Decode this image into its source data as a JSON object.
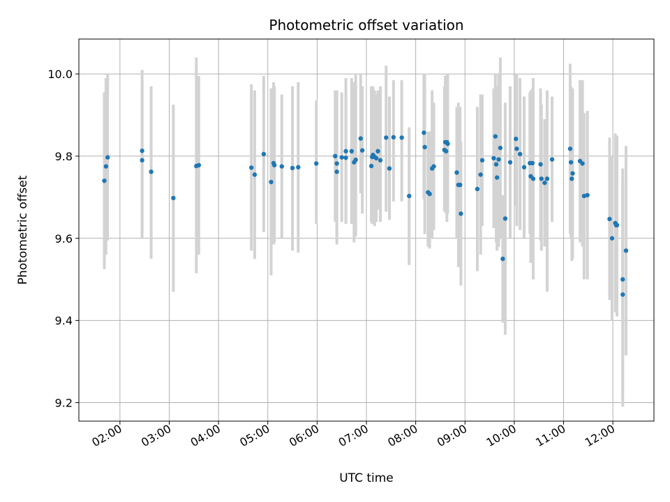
{
  "chart_data": {
    "type": "scatter",
    "title": "Photometric offset variation",
    "xlabel": "UTC time",
    "ylabel": "Photometric offset",
    "xlim": [
      "01:10",
      "12:50"
    ],
    "ylim": [
      9.155,
      10.085
    ],
    "x_ticks": [
      "02:00",
      "03:00",
      "04:00",
      "05:00",
      "06:00",
      "07:00",
      "08:00",
      "09:00",
      "10:00",
      "11:00",
      "12:00"
    ],
    "y_ticks": [
      9.2,
      9.4,
      9.6,
      9.8,
      10.0
    ],
    "y_tick_labels": [
      "9.2",
      "9.4",
      "9.6",
      "9.8",
      "10.0"
    ],
    "grid": true,
    "marker_color": "#1f77b4",
    "errorbar_color": "#d3d3d3",
    "points": [
      [
        "01:41",
        9.74,
        9.525,
        9.955
      ],
      [
        "01:43",
        9.775,
        9.56,
        9.99
      ],
      [
        "01:45",
        9.797,
        9.595,
        10.0
      ],
      [
        "02:27",
        9.813,
        9.615,
        10.01
      ],
      [
        "02:27",
        9.79,
        9.6,
        9.98
      ],
      [
        "02:38",
        9.762,
        9.55,
        9.97
      ],
      [
        "03:05",
        9.698,
        9.47,
        9.925
      ],
      [
        "03:33",
        9.776,
        9.515,
        10.04
      ],
      [
        "03:36",
        9.778,
        9.56,
        9.995
      ],
      [
        "04:40",
        9.772,
        9.57,
        9.975
      ],
      [
        "04:44",
        9.755,
        9.55,
        9.96
      ],
      [
        "04:55",
        9.805,
        9.615,
        9.995
      ],
      [
        "05:04",
        9.737,
        9.51,
        9.965
      ],
      [
        "05:07",
        9.783,
        9.585,
        9.98
      ],
      [
        "05:08",
        9.778,
        9.59,
        9.97
      ],
      [
        "05:17",
        9.775,
        9.6,
        9.95
      ],
      [
        "05:30",
        9.771,
        9.57,
        9.97
      ],
      [
        "05:37",
        9.773,
        9.565,
        9.98
      ],
      [
        "05:59",
        9.782,
        9.635,
        9.935
      ],
      [
        "06:22",
        9.8,
        9.64,
        9.96
      ],
      [
        "06:24",
        9.762,
        9.585,
        9.955
      ],
      [
        "06:24",
        9.782,
        9.605,
        9.96
      ],
      [
        "06:30",
        9.797,
        9.64,
        9.955
      ],
      [
        "06:35",
        9.796,
        9.645,
        9.945
      ],
      [
        "06:35",
        9.812,
        9.635,
        9.99
      ],
      [
        "06:42",
        9.812,
        9.635,
        9.99
      ],
      [
        "06:45",
        9.785,
        9.59,
        9.98
      ],
      [
        "06:47",
        9.791,
        9.605,
        10.0
      ],
      [
        "06:53",
        9.843,
        9.71,
        10.0
      ],
      [
        "06:55",
        9.814,
        9.66,
        9.97
      ],
      [
        "07:06",
        9.776,
        9.64,
        9.97
      ],
      [
        "07:07",
        9.798,
        9.635,
        9.96
      ],
      [
        "07:08",
        9.803,
        9.635,
        9.97
      ],
      [
        "07:10",
        9.798,
        9.63,
        9.96
      ],
      [
        "07:12",
        9.795,
        9.64,
        9.95
      ],
      [
        "07:14",
        9.812,
        9.67,
        9.96
      ],
      [
        "07:17",
        9.79,
        9.64,
        9.97
      ],
      [
        "07:24",
        9.845,
        9.665,
        10.02
      ],
      [
        "07:28",
        9.77,
        9.645,
        9.945
      ],
      [
        "07:33",
        9.846,
        9.69,
        9.985
      ],
      [
        "07:43",
        9.845,
        9.69,
        9.985
      ],
      [
        "07:52",
        9.703,
        9.535,
        9.87
      ],
      [
        "08:10",
        9.857,
        9.695,
        10.0
      ],
      [
        "08:11",
        9.822,
        9.61,
        10.0
      ],
      [
        "08:15",
        9.712,
        9.58,
        9.86
      ],
      [
        "08:17",
        9.708,
        9.575,
        9.86
      ],
      [
        "08:20",
        9.77,
        9.6,
        9.96
      ],
      [
        "08:22",
        9.775,
        9.62,
        9.93
      ],
      [
        "08:35",
        9.815,
        9.665,
        9.97
      ],
      [
        "08:36",
        9.834,
        9.67,
        9.995
      ],
      [
        "08:37",
        9.812,
        9.66,
        9.96
      ],
      [
        "08:38",
        9.834,
        9.64,
        10.0
      ],
      [
        "08:39",
        9.83,
        9.66,
        10.0
      ],
      [
        "08:50",
        9.76,
        9.6,
        9.92
      ],
      [
        "08:52",
        9.73,
        9.53,
        9.93
      ],
      [
        "08:54",
        9.73,
        9.54,
        9.92
      ],
      [
        "08:55",
        9.66,
        9.485,
        9.835
      ],
      [
        "09:15",
        9.72,
        9.52,
        9.92
      ],
      [
        "09:19",
        9.755,
        9.56,
        9.95
      ],
      [
        "09:21",
        9.79,
        9.63,
        9.95
      ],
      [
        "09:35",
        9.795,
        9.625,
        9.965
      ],
      [
        "09:37",
        9.848,
        9.67,
        10.0
      ],
      [
        "09:38",
        9.78,
        9.59,
        9.97
      ],
      [
        "09:39",
        9.748,
        9.57,
        9.925
      ],
      [
        "09:41",
        9.792,
        9.58,
        10.0
      ],
      [
        "09:43",
        9.82,
        9.6,
        10.04
      ],
      [
        "09:46",
        9.55,
        9.395,
        9.705
      ],
      [
        "09:49",
        9.648,
        9.365,
        9.93
      ],
      [
        "09:55",
        9.785,
        9.6,
        9.97
      ],
      [
        "10:02",
        9.842,
        9.68,
        10.0
      ],
      [
        "10:03",
        9.818,
        9.63,
        10.0
      ],
      [
        "10:07",
        9.805,
        9.62,
        9.99
      ],
      [
        "10:12",
        9.773,
        9.6,
        9.945
      ],
      [
        "10:19",
        9.783,
        9.61,
        9.955
      ],
      [
        "10:20",
        9.751,
        9.54,
        9.96
      ],
      [
        "10:22",
        9.783,
        9.6,
        9.965
      ],
      [
        "10:23",
        9.745,
        9.5,
        9.99
      ],
      [
        "10:32",
        9.78,
        9.595,
        9.965
      ],
      [
        "10:33",
        9.745,
        9.57,
        9.925
      ],
      [
        "10:37",
        9.735,
        9.58,
        9.89
      ],
      [
        "10:40",
        9.745,
        9.47,
        9.96
      ],
      [
        "10:46",
        9.792,
        9.64,
        9.945
      ],
      [
        "11:08",
        9.818,
        9.61,
        10.025
      ],
      [
        "11:09",
        9.785,
        9.6,
        9.97
      ],
      [
        "11:10",
        9.745,
        9.545,
        9.945
      ],
      [
        "11:11",
        9.758,
        9.55,
        9.965
      ],
      [
        "11:20",
        9.788,
        9.59,
        9.985
      ],
      [
        "11:23",
        9.782,
        9.58,
        9.985
      ],
      [
        "11:25",
        9.703,
        9.5,
        9.905
      ],
      [
        "11:29",
        9.705,
        9.5,
        9.91
      ],
      [
        "11:56",
        9.647,
        9.45,
        9.845
      ],
      [
        "11:59",
        9.6,
        9.4,
        9.8
      ],
      [
        "12:03",
        9.637,
        9.42,
        9.855
      ],
      [
        "12:04",
        9.632,
        9.45,
        9.815
      ],
      [
        "12:05",
        9.632,
        9.41,
        9.85
      ],
      [
        "12:12",
        9.463,
        9.19,
        9.735
      ],
      [
        "12:12",
        9.5,
        9.225,
        9.77
      ],
      [
        "12:16",
        9.57,
        9.315,
        9.825
      ]
    ]
  }
}
